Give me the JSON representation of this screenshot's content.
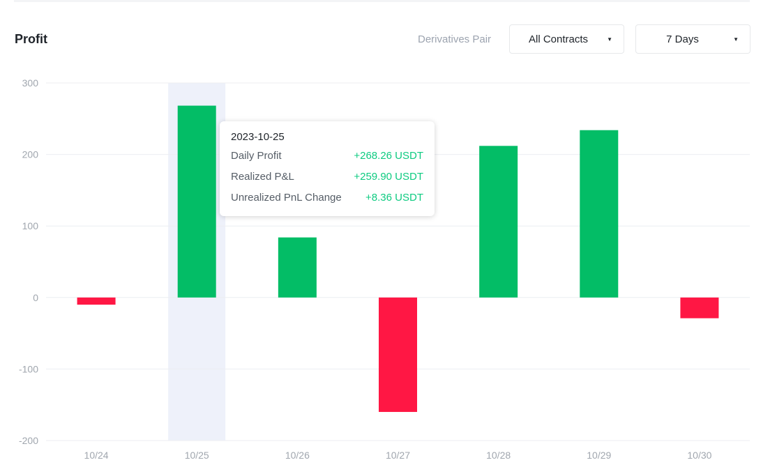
{
  "header": {
    "title": "Profit",
    "pair_label": "Derivatives Pair",
    "contract_select": "All Contracts",
    "period_select": "7 Days"
  },
  "tooltip": {
    "date": "2023-10-25",
    "rows": [
      {
        "label": "Daily Profit",
        "value": "+268.26 USDT"
      },
      {
        "label": "Realized P&L",
        "value": "+259.90 USDT"
      },
      {
        "label": "Unrealized PnL Change",
        "value": "+8.36 USDT"
      }
    ]
  },
  "colors": {
    "positive": "#03bd66",
    "negative": "#ff1744",
    "highlight": "#eef1fa",
    "grid": "#eceef2"
  },
  "chart_data": {
    "type": "bar",
    "categories": [
      "10/24",
      "10/25",
      "10/26",
      "10/27",
      "10/28",
      "10/29",
      "10/30"
    ],
    "values": [
      -10,
      268.26,
      84,
      -160,
      212,
      234,
      -29
    ],
    "ylim": [
      -200,
      300
    ],
    "yticks": [
      "300",
      "200",
      "100",
      "0",
      "-100",
      "-200"
    ],
    "highlighted": "10/25",
    "grid": true
  }
}
